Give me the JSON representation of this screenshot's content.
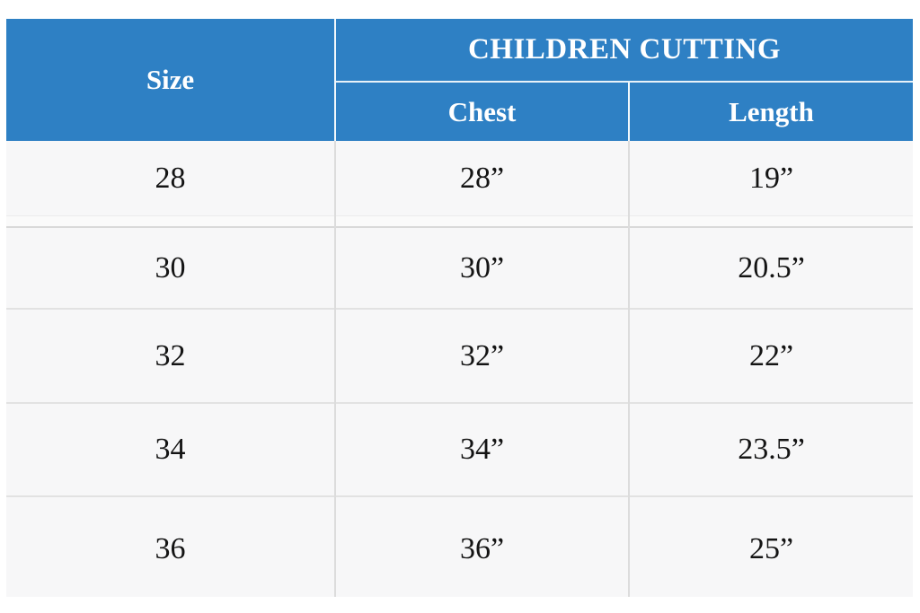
{
  "chart_data": {
    "type": "table",
    "group_header": "CHILDREN CUTTING",
    "columns": [
      "Size",
      "Chest",
      "Length"
    ],
    "rows": [
      [
        "28",
        "28”",
        "19”"
      ],
      [
        "30",
        "30”",
        "20.5”"
      ],
      [
        "32",
        "32”",
        "22”"
      ],
      [
        "34",
        "34”",
        "23.5”"
      ],
      [
        "36",
        "36”",
        "25”"
      ]
    ]
  },
  "colors": {
    "header_bg": "#2e80c4",
    "header_text": "#ffffff",
    "row_bg": "#f7f7f8",
    "row_border": "#dcdcdc",
    "cell_text": "#141414",
    "page_bg": "#ffffff"
  }
}
